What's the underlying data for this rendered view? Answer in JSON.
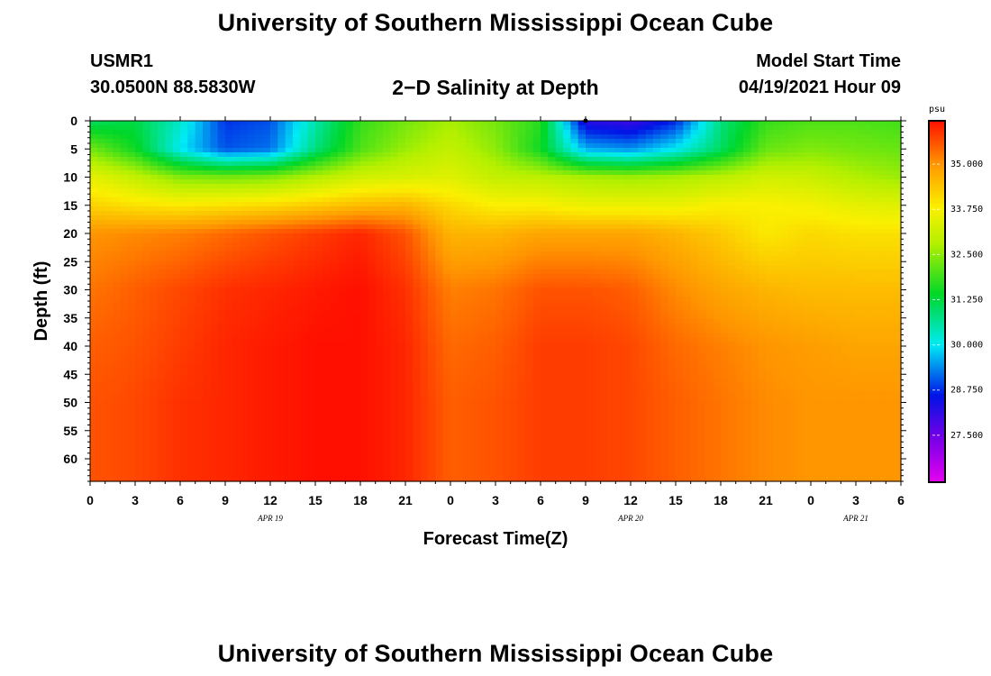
{
  "header": {
    "title": "University of Southern Mississippi Ocean Cube",
    "footer_title": "University of Southern Mississippi Ocean Cube",
    "station_id": "USMR1",
    "coordinates": "30.0500N  88.5830W",
    "subtitle": "2−D Salinity at Depth",
    "model_start_label": "Model Start Time",
    "model_start_value": "04/19/2021 Hour 09"
  },
  "chart_data": {
    "type": "heatmap",
    "title": "2-D Salinity at Depth",
    "xlabel": "Forecast Time(Z)",
    "ylabel": "Depth (ft)",
    "x_hours": [
      0,
      3,
      6,
      9,
      12,
      15,
      18,
      21,
      24,
      27,
      30,
      33,
      36,
      39,
      42,
      45,
      48,
      51,
      54
    ],
    "x_tick_labels": [
      "0",
      "3",
      "6",
      "9",
      "12",
      "15",
      "18",
      "21",
      "0",
      "3",
      "6",
      "9",
      "12",
      "15",
      "18",
      "21",
      "0",
      "3",
      "6"
    ],
    "date_labels": [
      {
        "label": "APR  19",
        "hour": 12
      },
      {
        "label": "APR  20",
        "hour": 36
      },
      {
        "label": "APR  21",
        "hour": 51
      }
    ],
    "y_ticks": [
      0,
      5,
      10,
      15,
      20,
      25,
      30,
      35,
      40,
      45,
      50,
      55,
      60
    ],
    "ylim": [
      64,
      0
    ],
    "xlim": [
      0,
      54
    ],
    "current_time_marker_hour": 33,
    "colorbar": {
      "unit": "psu",
      "range": [
        26.2,
        36.2
      ],
      "ticks": [
        27.5,
        28.75,
        30.0,
        31.25,
        32.5,
        33.75,
        35.0
      ],
      "tick_labels": [
        "27.500",
        "28.750",
        "30.000",
        "31.250",
        "32.500",
        "33.750",
        "35.000"
      ]
    },
    "salinity_grid": {
      "depths_ft": [
        0,
        5,
        10,
        15,
        20,
        30,
        40,
        50,
        64
      ],
      "hours": [
        0,
        3,
        6,
        9,
        12,
        15,
        18,
        21,
        24,
        27,
        30,
        33,
        36,
        39,
        42,
        45,
        48,
        51,
        54
      ],
      "values": [
        [
          31.0,
          31.2,
          30.3,
          28.8,
          29.0,
          30.5,
          31.8,
          32.3,
          32.7,
          32.3,
          31.7,
          28.2,
          28.0,
          28.7,
          30.8,
          31.8,
          32.0,
          32.0,
          31.9
        ],
        [
          32.3,
          31.5,
          30.0,
          29.0,
          29.2,
          30.8,
          32.0,
          32.6,
          33.0,
          32.5,
          31.5,
          29.6,
          29.4,
          30.0,
          31.0,
          32.2,
          32.4,
          32.3,
          32.2
        ],
        [
          33.5,
          33.0,
          32.4,
          32.3,
          32.4,
          32.8,
          33.2,
          33.3,
          33.4,
          33.0,
          32.9,
          32.7,
          32.6,
          32.7,
          32.9,
          33.2,
          33.1,
          32.8,
          32.6
        ],
        [
          34.2,
          34.0,
          33.9,
          34.0,
          34.1,
          34.3,
          34.5,
          34.6,
          34.1,
          33.8,
          33.8,
          33.6,
          33.6,
          33.6,
          33.8,
          33.8,
          33.7,
          33.5,
          33.4
        ],
        [
          35.0,
          35.1,
          35.2,
          35.4,
          35.6,
          35.8,
          36.0,
          35.6,
          34.6,
          34.6,
          34.8,
          34.8,
          34.8,
          34.6,
          34.3,
          33.9,
          34.1,
          34.0,
          34.0
        ],
        [
          35.3,
          35.5,
          35.7,
          35.9,
          36.0,
          36.1,
          36.2,
          35.9,
          35.2,
          35.3,
          35.6,
          35.6,
          35.5,
          35.1,
          34.8,
          34.6,
          34.5,
          34.5,
          34.5
        ],
        [
          35.5,
          35.6,
          35.8,
          36.0,
          36.1,
          36.2,
          36.2,
          36.0,
          35.4,
          35.5,
          35.8,
          35.8,
          35.7,
          35.4,
          35.2,
          35.0,
          34.9,
          34.8,
          34.8
        ],
        [
          35.6,
          35.7,
          35.9,
          36.0,
          36.1,
          36.2,
          36.2,
          36.0,
          35.5,
          35.6,
          35.8,
          35.8,
          35.7,
          35.5,
          35.3,
          35.1,
          35.0,
          35.0,
          35.0
        ],
        [
          35.6,
          35.7,
          35.9,
          36.0,
          36.1,
          36.2,
          36.2,
          36.0,
          35.5,
          35.6,
          35.8,
          35.8,
          35.7,
          35.5,
          35.3,
          35.1,
          35.0,
          35.0,
          35.0
        ]
      ]
    }
  }
}
